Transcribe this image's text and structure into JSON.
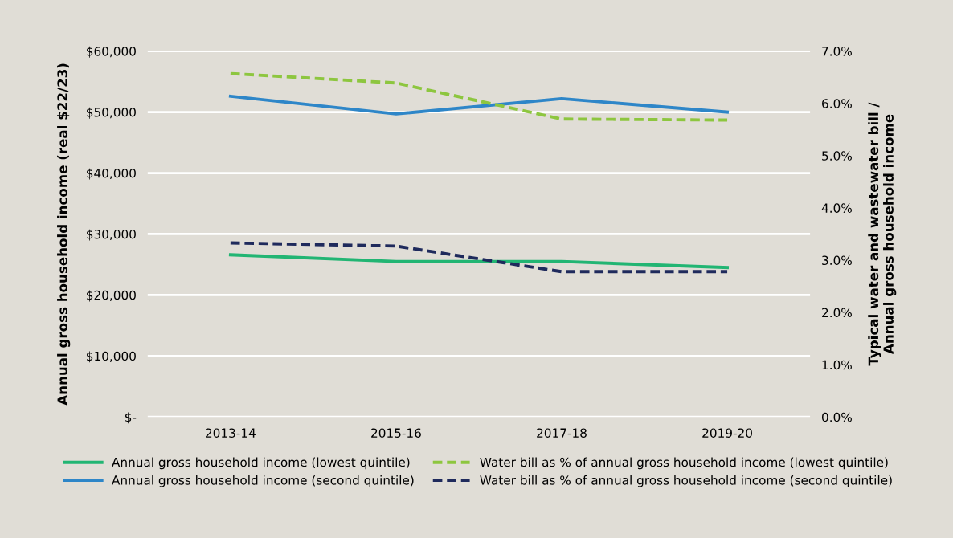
{
  "chart_data": {
    "type": "line",
    "ylabel": "Annual gross household income (real $22/23)",
    "y2label": "Typical water and wastewater bill /\nAnnual gross household income",
    "categories": [
      "2013-14",
      "2015-16",
      "2017-18",
      "2019-20"
    ],
    "series": [
      {
        "name": "Annual gross household income (lowest quintile)",
        "color": "#22b573",
        "values": [
          26600,
          25500,
          25500,
          24500
        ],
        "line_style": "solid"
      },
      {
        "name": "Annual gross household income (second quintile)",
        "color": "#2e86c8",
        "values": [
          52600,
          49700,
          52200,
          50000
        ],
        "line_style": "solid"
      },
      {
        "name": "Water bill as % of annual gross household income (lowest quintile)",
        "color": "#8dc63f",
        "values": [
          6.57,
          6.39,
          5.7,
          5.68
        ],
        "axis": "y2",
        "line_style": "dashed"
      },
      {
        "name": "Water bill as % of annual gross household income (second quintile)",
        "color": "#1f2a5c",
        "values": [
          3.33,
          3.27,
          2.78,
          2.78
        ],
        "axis": "y2",
        "line_style": "dashed"
      }
    ],
    "ylim": [
      0,
      60000
    ],
    "yticks": [
      {
        "value": 0,
        "label": "$-"
      },
      {
        "value": 10000,
        "label": "$10,000"
      },
      {
        "value": 20000,
        "label": "$20,000"
      },
      {
        "value": 30000,
        "label": "$30,000"
      },
      {
        "value": 40000,
        "label": "$40,000"
      },
      {
        "value": 50000,
        "label": "$50,000"
      },
      {
        "value": 60000,
        "label": "$60,000"
      }
    ],
    "y2lim": [
      0,
      7
    ],
    "y2ticks": [
      {
        "value": 0,
        "label": "0.0%"
      },
      {
        "value": 1,
        "label": "1.0%"
      },
      {
        "value": 2,
        "label": "2.0%"
      },
      {
        "value": 3,
        "label": "3.0%"
      },
      {
        "value": 4,
        "label": "4.0%"
      },
      {
        "value": 5,
        "label": "5.0%"
      },
      {
        "value": 6,
        "label": "6.0%"
      },
      {
        "value": 7,
        "label": "7.0%"
      }
    ],
    "grid": "y",
    "legend": "bottom",
    "marker": "none"
  }
}
